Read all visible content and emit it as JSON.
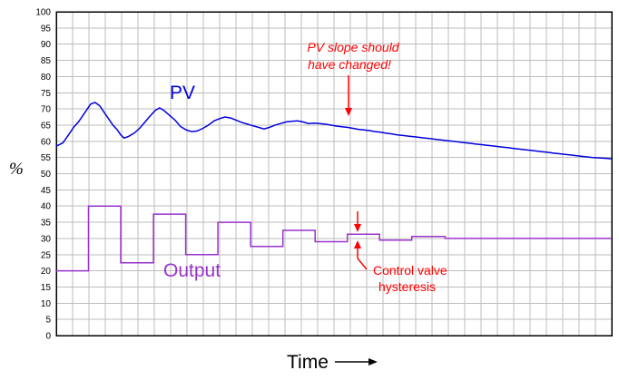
{
  "colors": {
    "pv": "#0000dd",
    "output": "#9933cc",
    "annotation": "#ff0000",
    "grid": "#bdbdbd",
    "frame": "#000000"
  },
  "chart_data": {
    "type": "line",
    "title": "",
    "xlabel": "Time",
    "ylabel": "%",
    "ylim": [
      0,
      100
    ],
    "y_ticks": [
      "0",
      "5",
      "10",
      "15",
      "20",
      "25",
      "30",
      "35",
      "40",
      "45",
      "50",
      "55",
      "60",
      "65",
      "70",
      "75",
      "80",
      "85",
      "90",
      "95",
      "100"
    ],
    "x_ticks_labeled": false,
    "grid": true,
    "series": [
      {
        "name": "PV",
        "color": "#0000dd",
        "x": [
          0,
          1.2,
          2.2,
          3.2,
          4.0,
          4.8,
          5.6,
          6.2,
          7.0,
          7.8,
          8.6,
          9.4,
          10.2,
          11.0,
          11.6,
          12.2,
          13.0,
          14.0,
          15.0,
          16.0,
          17.0,
          17.8,
          18.6,
          19.4,
          20.4,
          21.4,
          22.4,
          23.4,
          24.4,
          25.4,
          26.4,
          27.4,
          28.4,
          29.4,
          30.4,
          31.4,
          32.4,
          33.4,
          34.4,
          35.4,
          36.4,
          37.4,
          38.4,
          39.4,
          40.4,
          41.4,
          42.4,
          43.4,
          44.4,
          45.4,
          46.4,
          47.4,
          48.4,
          49.4,
          50.4,
          51.4,
          52.4,
          53.4,
          54.4,
          55.4,
          56.4,
          57.4,
          58.4,
          59.4,
          60.4,
          61.4,
          62.4,
          63.4,
          64.4,
          65.4,
          66.4,
          67.4,
          68.4,
          69.4,
          70.4,
          71.4,
          72.4,
          73.4,
          74.4,
          75.4,
          76.4,
          77.4,
          78.4,
          79.4,
          80.4,
          81.4,
          82.4,
          83.4,
          84.4,
          85.4,
          86.4,
          87.4,
          88.4,
          89.4,
          90.4,
          91.4,
          92.4,
          93.4,
          94.4,
          95.4,
          96.4,
          97.4,
          98.4,
          99.4,
          100
        ],
        "y": [
          58.5,
          59.5,
          62.0,
          64.5,
          66.0,
          68.0,
          70.0,
          71.5,
          72.0,
          71.0,
          69.0,
          67.0,
          65.0,
          63.5,
          62.0,
          61.0,
          61.5,
          62.5,
          64.0,
          66.0,
          68.0,
          69.5,
          70.3,
          69.5,
          68.0,
          66.5,
          64.5,
          63.5,
          63.0,
          63.2,
          64.0,
          65.0,
          66.3,
          67.0,
          67.5,
          67.2,
          66.5,
          65.8,
          65.3,
          64.8,
          64.3,
          63.8,
          64.3,
          65.0,
          65.5,
          66.0,
          66.2,
          66.3,
          66.0,
          65.5,
          65.6,
          65.5,
          65.3,
          65.0,
          64.7,
          64.5,
          64.3,
          64.0,
          63.7,
          63.5,
          63.3,
          63.0,
          62.8,
          62.5,
          62.3,
          62.0,
          61.8,
          61.6,
          61.4,
          61.2,
          61.0,
          60.8,
          60.6,
          60.4,
          60.2,
          60.0,
          59.8,
          59.6,
          59.4,
          59.2,
          59.0,
          58.8,
          58.6,
          58.4,
          58.2,
          58.0,
          57.8,
          57.6,
          57.4,
          57.2,
          57.0,
          56.8,
          56.6,
          56.4,
          56.2,
          56.0,
          55.8,
          55.6,
          55.4,
          55.2,
          55.0,
          54.9,
          54.8,
          54.7,
          54.6
        ],
        "label_text": "PV"
      },
      {
        "name": "Output",
        "color": "#9933cc",
        "step": true,
        "x": [
          0,
          5.8,
          11.6,
          17.5,
          23.3,
          29.1,
          35.0,
          40.8,
          46.6,
          52.4,
          58.2,
          64.0,
          70.0,
          100
        ],
        "y": [
          20,
          40,
          22.5,
          37.5,
          25,
          35,
          27.5,
          32.5,
          29,
          31.3,
          29.5,
          30.6,
          30,
          30
        ],
        "label_text": "Output"
      }
    ],
    "annotations": [
      {
        "text_lines": [
          "PV slope should",
          "have changed!"
        ],
        "style": "italic",
        "target_series": "PV",
        "target_x": 52.4
      },
      {
        "text_lines": [
          "Control valve",
          "hysteresis"
        ],
        "style": "normal",
        "target_series": "Output",
        "target_x": 52.4
      }
    ]
  }
}
